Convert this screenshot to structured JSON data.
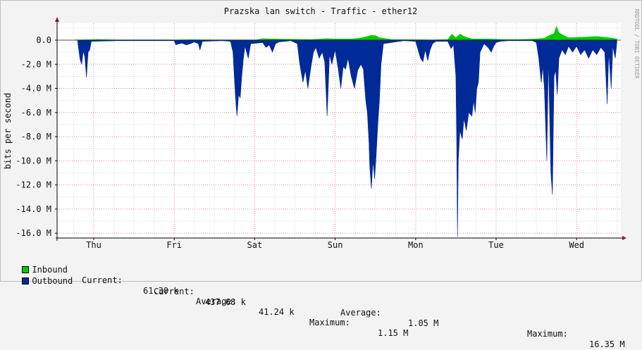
{
  "chart_data": {
    "type": "area",
    "title": "Prazska lan switch - Traffic - ether12",
    "ylabel": "bits per second",
    "watermark": "RRDTOOL / TOBI OETIKER",
    "ylim": [
      -16.4,
      1.4
    ],
    "yticks": [
      {
        "value": 0,
        "label": "0.0"
      },
      {
        "value": -2,
        "label": "-2.0 M"
      },
      {
        "value": -4,
        "label": "-4.0 M"
      },
      {
        "value": -6,
        "label": "-6.0 M"
      },
      {
        "value": -8,
        "label": "-8.0 M"
      },
      {
        "value": -10,
        "label": "-10.0 M"
      },
      {
        "value": -12,
        "label": "-12.0 M"
      },
      {
        "value": -14,
        "label": "-14.0 M"
      },
      {
        "value": -16,
        "label": "-16.0 M"
      }
    ],
    "categories": [
      "Thu",
      "Fri",
      "Sat",
      "Sun",
      "Mon",
      "Tue",
      "Wed"
    ],
    "xlim": [
      0,
      7
    ],
    "colors": {
      "inbound": "#00cc00",
      "outbound": "#002a97",
      "grid_major": "#e09090",
      "grid_minor": "#d8d8d8",
      "axis": "#000000"
    },
    "series": [
      {
        "name": "Inbound",
        "color": "#00cc00",
        "points": [
          [
            -0.23,
            0.02
          ],
          [
            -0.15,
            0.03
          ],
          [
            0.05,
            0.05
          ],
          [
            0.3,
            0.02
          ],
          [
            1.0,
            0.02
          ],
          [
            1.2,
            0.04
          ],
          [
            1.5,
            0.02
          ],
          [
            2.02,
            0.03
          ],
          [
            2.1,
            0.12
          ],
          [
            2.2,
            0.1
          ],
          [
            2.35,
            0.08
          ],
          [
            2.7,
            0.05
          ],
          [
            2.9,
            0.12
          ],
          [
            3.0,
            0.1
          ],
          [
            3.2,
            0.1
          ],
          [
            3.3,
            0.15
          ],
          [
            3.4,
            0.3
          ],
          [
            3.45,
            0.4
          ],
          [
            3.5,
            0.38
          ],
          [
            3.55,
            0.2
          ],
          [
            3.7,
            0.05
          ],
          [
            4.2,
            0.03
          ],
          [
            4.4,
            0.05
          ],
          [
            4.45,
            0.5
          ],
          [
            4.5,
            0.2
          ],
          [
            4.55,
            0.5
          ],
          [
            4.6,
            0.3
          ],
          [
            4.7,
            0.1
          ],
          [
            4.9,
            0.1
          ],
          [
            5.1,
            0.05
          ],
          [
            5.3,
            0.05
          ],
          [
            5.5,
            0.1
          ],
          [
            5.6,
            0.15
          ],
          [
            5.65,
            0.35
          ],
          [
            5.72,
            0.55
          ],
          [
            5.75,
            1.15
          ],
          [
            5.78,
            0.6
          ],
          [
            5.85,
            0.35
          ],
          [
            5.9,
            0.2
          ],
          [
            6.1,
            0.25
          ],
          [
            6.25,
            0.3
          ],
          [
            6.4,
            0.2
          ],
          [
            6.5,
            0.1
          ]
        ]
      },
      {
        "name": "Outbound",
        "color": "#002a97",
        "points": [
          [
            -0.2,
            -0.1
          ],
          [
            -0.17,
            -1.6
          ],
          [
            -0.15,
            -2.0
          ],
          [
            -0.13,
            -0.9
          ],
          [
            -0.11,
            -1.4
          ],
          [
            -0.09,
            -3.1
          ],
          [
            -0.07,
            -1.0
          ],
          [
            -0.05,
            -0.8
          ],
          [
            -0.03,
            -0.1
          ],
          [
            0.3,
            -0.05
          ],
          [
            1.0,
            -0.05
          ],
          [
            1.02,
            -0.4
          ],
          [
            1.06,
            -0.3
          ],
          [
            1.1,
            -0.25
          ],
          [
            1.15,
            -0.4
          ],
          [
            1.2,
            -0.3
          ],
          [
            1.25,
            -0.15
          ],
          [
            1.3,
            -0.3
          ],
          [
            1.32,
            -0.8
          ],
          [
            1.35,
            -0.1
          ],
          [
            1.6,
            -0.05
          ],
          [
            1.7,
            -0.1
          ],
          [
            1.73,
            -1.0
          ],
          [
            1.75,
            -3.5
          ],
          [
            1.77,
            -5.5
          ],
          [
            1.78,
            -6.3
          ],
          [
            1.8,
            -4.5
          ],
          [
            1.82,
            -4.8
          ],
          [
            1.84,
            -3.0
          ],
          [
            1.86,
            -1.5
          ],
          [
            1.88,
            -0.5
          ],
          [
            1.92,
            -1.5
          ],
          [
            1.95,
            -0.3
          ],
          [
            2.1,
            -0.2
          ],
          [
            2.14,
            -0.6
          ],
          [
            2.18,
            -0.4
          ],
          [
            2.22,
            -1.0
          ],
          [
            2.26,
            -0.3
          ],
          [
            2.3,
            -0.15
          ],
          [
            2.45,
            -0.05
          ],
          [
            2.53,
            -0.3
          ],
          [
            2.56,
            -2.0
          ],
          [
            2.6,
            -3.5
          ],
          [
            2.63,
            -2.5
          ],
          [
            2.66,
            -4.0
          ],
          [
            2.7,
            -2.2
          ],
          [
            2.73,
            -1.0
          ],
          [
            2.76,
            -0.6
          ],
          [
            2.8,
            -1.5
          ],
          [
            2.84,
            -1.0
          ],
          [
            2.87,
            -1.8
          ],
          [
            2.9,
            -6.3
          ],
          [
            2.93,
            -1.2
          ],
          [
            2.96,
            -2.0
          ],
          [
            3.0,
            -0.8
          ],
          [
            3.04,
            -2.5
          ],
          [
            3.07,
            -4.0
          ],
          [
            3.1,
            -2.2
          ],
          [
            3.13,
            -2.4
          ],
          [
            3.16,
            -1.5
          ],
          [
            3.2,
            -3.0
          ],
          [
            3.24,
            -4.0
          ],
          [
            3.28,
            -2.5
          ],
          [
            3.32,
            -2.0
          ],
          [
            3.35,
            -2.4
          ],
          [
            3.38,
            -5.0
          ],
          [
            3.4,
            -6.0
          ],
          [
            3.42,
            -8.5
          ],
          [
            3.43,
            -10.5
          ],
          [
            3.45,
            -12.3
          ],
          [
            3.47,
            -10.0
          ],
          [
            3.49,
            -11.5
          ],
          [
            3.51,
            -9.5
          ],
          [
            3.53,
            -7.0
          ],
          [
            3.55,
            -5.0
          ],
          [
            3.57,
            -2.0
          ],
          [
            3.6,
            -0.3
          ],
          [
            3.85,
            -0.05
          ],
          [
            4.0,
            -0.1
          ],
          [
            4.03,
            -0.8
          ],
          [
            4.06,
            -1.5
          ],
          [
            4.09,
            -1.8
          ],
          [
            4.12,
            -0.8
          ],
          [
            4.15,
            -1.7
          ],
          [
            4.18,
            -0.8
          ],
          [
            4.21,
            -0.3
          ],
          [
            4.25,
            -0.1
          ],
          [
            4.4,
            -0.1
          ],
          [
            4.44,
            -0.7
          ],
          [
            4.47,
            -0.4
          ],
          [
            4.5,
            -3.0
          ],
          [
            4.51,
            -8.0
          ],
          [
            4.52,
            -16.3
          ],
          [
            4.53,
            -10.0
          ],
          [
            4.55,
            -7.5
          ],
          [
            4.58,
            -8.2
          ],
          [
            4.6,
            -6.5
          ],
          [
            4.63,
            -7.5
          ],
          [
            4.66,
            -6.0
          ],
          [
            4.7,
            -6.3
          ],
          [
            4.72,
            -5.0
          ],
          [
            4.74,
            -6.0
          ],
          [
            4.76,
            -4.0
          ],
          [
            4.78,
            -3.5
          ],
          [
            4.8,
            -1.0
          ],
          [
            4.85,
            -0.3
          ],
          [
            4.9,
            -0.6
          ],
          [
            4.94,
            -1.0
          ],
          [
            4.97,
            -0.5
          ],
          [
            5.0,
            -0.2
          ],
          [
            5.05,
            -0.1
          ],
          [
            5.15,
            -0.05
          ],
          [
            5.45,
            -0.05
          ],
          [
            5.5,
            -0.2
          ],
          [
            5.53,
            -1.5
          ],
          [
            5.56,
            -3.5
          ],
          [
            5.58,
            -2.2
          ],
          [
            5.6,
            -4.0
          ],
          [
            5.63,
            -10.0
          ],
          [
            5.65,
            -1.5
          ],
          [
            5.68,
            -11.0
          ],
          [
            5.7,
            -12.8
          ],
          [
            5.72,
            -3.0
          ],
          [
            5.74,
            -2.5
          ],
          [
            5.76,
            -4.5
          ],
          [
            5.78,
            -1.5
          ],
          [
            5.82,
            -0.8
          ],
          [
            5.86,
            -1.2
          ],
          [
            5.9,
            -0.5
          ],
          [
            5.95,
            -1.0
          ],
          [
            6.0,
            -0.5
          ],
          [
            6.05,
            -1.2
          ],
          [
            6.1,
            -0.8
          ],
          [
            6.15,
            -1.5
          ],
          [
            6.2,
            -0.8
          ],
          [
            6.25,
            -1.2
          ],
          [
            6.3,
            -0.6
          ],
          [
            6.35,
            -1.0
          ],
          [
            6.38,
            -5.3
          ],
          [
            6.4,
            -1.0
          ],
          [
            6.43,
            -4.0
          ],
          [
            6.45,
            -0.5
          ],
          [
            6.48,
            -1.5
          ],
          [
            6.5,
            -0.2
          ]
        ]
      }
    ],
    "legend": {
      "inbound": {
        "name": "Inbound",
        "current_label": "Current:",
        "current": "61.30 k",
        "average_label": "Average:",
        "average": "41.24 k",
        "maximum_label": "Maximum:",
        "maximum": "1.15 M"
      },
      "outbound": {
        "name": "Outbound",
        "current_label": "Current:",
        "current": "437.68 k",
        "average_label": "Average:",
        "average": "1.05 M",
        "maximum_label": "Maximum:",
        "maximum": "16.35 M"
      }
    }
  }
}
